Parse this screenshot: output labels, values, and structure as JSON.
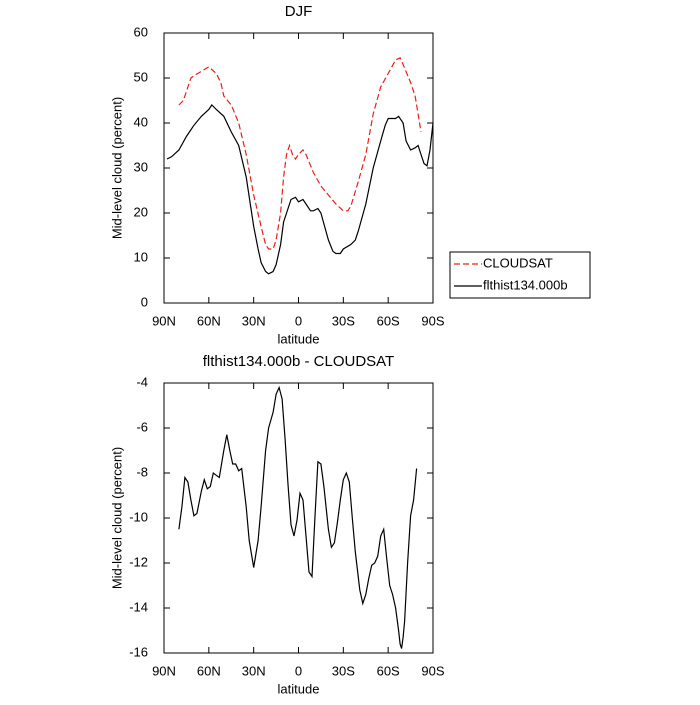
{
  "chart_data": [
    {
      "type": "line",
      "title": "DJF",
      "xlabel": "latitude",
      "ylabel": "Mid-level cloud (percent)",
      "xlim": [
        90,
        -90
      ],
      "ylim": [
        0,
        60
      ],
      "xticks": [
        {
          "value": 90,
          "label": "90N"
        },
        {
          "value": 60,
          "label": "60N"
        },
        {
          "value": 30,
          "label": "30N"
        },
        0,
        {
          "value": -30,
          "label": "30S"
        },
        {
          "value": -60,
          "label": "60S"
        },
        {
          "value": -90,
          "label": "90S"
        }
      ],
      "yticks": [
        0,
        10,
        20,
        30,
        40,
        50,
        60
      ],
      "legend": "right",
      "series": [
        {
          "name": "CLOUDSAT",
          "color": "#e8201c",
          "dash": true,
          "x": [
            80,
            77,
            75,
            72,
            70,
            65,
            60,
            55,
            52,
            50,
            45,
            40,
            35,
            30,
            25,
            22,
            20,
            17,
            15,
            12,
            10,
            8,
            6,
            4,
            2,
            0,
            -3,
            -5,
            -10,
            -15,
            -20,
            -25,
            -30,
            -33,
            -35,
            -40,
            -45,
            -50,
            -55,
            -60,
            -65,
            -68,
            -70,
            -75,
            -78,
            -80,
            -82
          ],
          "values": [
            44,
            45,
            47,
            50,
            50.5,
            51.5,
            52.5,
            51,
            49,
            46,
            44,
            40,
            33,
            24,
            17,
            13,
            12,
            12,
            14,
            20,
            28,
            33,
            35,
            33,
            32,
            33,
            34,
            33,
            29,
            26,
            24,
            22,
            20.5,
            20.5,
            21.5,
            27,
            33,
            42,
            48,
            51,
            54,
            54.5,
            53,
            49,
            46,
            42,
            38
          ]
        },
        {
          "name": "flthist134.000b",
          "color": "#000000",
          "dash": false,
          "x": [
            88,
            85,
            80,
            75,
            70,
            65,
            60,
            58,
            55,
            50,
            45,
            40,
            35,
            30,
            27,
            25,
            22,
            20,
            17,
            15,
            12,
            10,
            5,
            2,
            0,
            -3,
            -5,
            -8,
            -10,
            -13,
            -15,
            -20,
            -23,
            -25,
            -28,
            -30,
            -35,
            -38,
            -40,
            -45,
            -50,
            -55,
            -58,
            -60,
            -65,
            -67,
            -70,
            -72,
            -75,
            -78,
            -80,
            -82,
            -84,
            -86,
            -88,
            -90
          ],
          "values": [
            32,
            32.5,
            34,
            37,
            39.5,
            41.5,
            43,
            44,
            43,
            41.5,
            38,
            35,
            28,
            17,
            12,
            9,
            7,
            6.5,
            7,
            8.5,
            13,
            18,
            23,
            23.5,
            22.5,
            23,
            22,
            20.5,
            20.5,
            21,
            20,
            14,
            11.5,
            11,
            11,
            12,
            13,
            14,
            16,
            22,
            30,
            36,
            39.5,
            41,
            41,
            41.5,
            40,
            36,
            34,
            34.5,
            35,
            33,
            31,
            30.5,
            34,
            40
          ]
        }
      ]
    },
    {
      "type": "line",
      "title": "flthist134.000b - CLOUDSAT",
      "xlabel": "latitude",
      "ylabel": "Mid-level cloud (percent)",
      "xlim": [
        90,
        -90
      ],
      "ylim": [
        -16,
        -4
      ],
      "xticks": [
        {
          "value": 90,
          "label": "90N"
        },
        {
          "value": 60,
          "label": "60N"
        },
        {
          "value": 30,
          "label": "30N"
        },
        0,
        {
          "value": -30,
          "label": "30S"
        },
        {
          "value": -60,
          "label": "60S"
        },
        {
          "value": -90,
          "label": "90S"
        }
      ],
      "yticks": [
        -16,
        -14,
        -12,
        -10,
        -8,
        -6,
        -4
      ],
      "series": [
        {
          "color": "#000000",
          "dash": false,
          "x": [
            80,
            78,
            76,
            74,
            72,
            70,
            68,
            65,
            63,
            61,
            59,
            57,
            55,
            53,
            50,
            48,
            46,
            44,
            42,
            40,
            38,
            35,
            33,
            30,
            27,
            25,
            22,
            20,
            17,
            15,
            13,
            11,
            9,
            7,
            5,
            3,
            1,
            -1,
            -3,
            -5,
            -7,
            -9,
            -11,
            -13,
            -15,
            -17,
            -20,
            -22,
            -24,
            -26,
            -28,
            -30,
            -32,
            -34,
            -36,
            -38,
            -41,
            -43,
            -45,
            -47,
            -49,
            -51,
            -53,
            -55,
            -57,
            -59,
            -61,
            -63,
            -65,
            -67,
            -68,
            -69,
            -70,
            -71,
            -73,
            -75,
            -77,
            -79
          ],
          "values": [
            -10.5,
            -9.5,
            -8.2,
            -8.4,
            -9.2,
            -9.9,
            -9.8,
            -8.8,
            -8.3,
            -8.7,
            -8.6,
            -8.0,
            -8.1,
            -8.2,
            -7.0,
            -6.3,
            -7.0,
            -7.6,
            -7.6,
            -7.9,
            -7.8,
            -9.5,
            -11.0,
            -12.2,
            -11.0,
            -9.5,
            -7.0,
            -6.0,
            -5.3,
            -4.5,
            -4.2,
            -4.7,
            -6.5,
            -8.5,
            -10.3,
            -10.8,
            -10.1,
            -8.9,
            -9.2,
            -10.8,
            -12.4,
            -12.6,
            -10.0,
            -7.5,
            -7.6,
            -8.6,
            -10.5,
            -11.3,
            -11.1,
            -10.2,
            -9.2,
            -8.3,
            -8.0,
            -8.4,
            -10.0,
            -11.5,
            -13.2,
            -13.8,
            -13.4,
            -12.7,
            -12.1,
            -12.0,
            -11.7,
            -10.8,
            -10.5,
            -11.8,
            -13.0,
            -13.4,
            -14.0,
            -15.0,
            -15.6,
            -15.8,
            -15.3,
            -14.6,
            -12.0,
            -9.9,
            -9.2,
            -7.8
          ]
        }
      ]
    }
  ]
}
